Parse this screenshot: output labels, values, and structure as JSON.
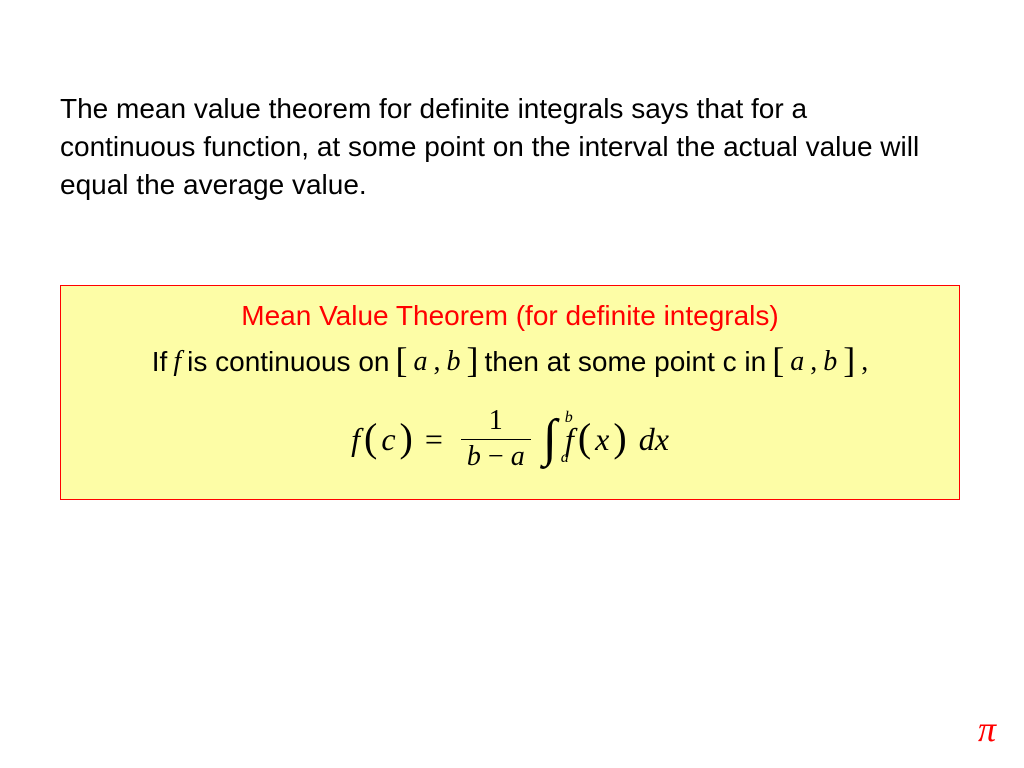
{
  "page": {
    "background_color": "#ffffff",
    "text_color": "#000000",
    "font_size_pt": 21
  },
  "intro": {
    "text": "The mean value theorem for definite integrals says that for a continuous function, at some point on the interval the actual value will equal the average value."
  },
  "theorem": {
    "box": {
      "background_color": "#fdfda6",
      "border_color": "#ff0000",
      "border_width": 1
    },
    "title": {
      "text": "Mean Value Theorem (for definite integrals)",
      "color": "#ff0000",
      "font_size_pt": 21
    },
    "statement": {
      "p1": "If",
      "f": "f",
      "p2": "is continuous on",
      "lbr1": "[",
      "a1": "a",
      "comma1": ",",
      "b1": "b",
      "rbr1": "]",
      "p3": "then at some point c in",
      "lbr2": "[",
      "a2": "a",
      "comma2": ",",
      "b2": "b",
      "rbr2": "]",
      "trail": ","
    },
    "formula": {
      "lhs_f": "f",
      "lhs_lp": "(",
      "lhs_c": "c",
      "lhs_rp": ")",
      "eq": "=",
      "num": "1",
      "den_b": "b",
      "den_minus": "−",
      "den_a": "a",
      "int_symbol": "∫",
      "int_lower": "a",
      "int_upper": "b",
      "rhs_f": "f",
      "rhs_lp": "(",
      "rhs_x": "x",
      "rhs_rp": ")",
      "dx": "dx"
    }
  },
  "corner": {
    "symbol": "π",
    "color": "#ff0000",
    "font_size_pt": 27
  }
}
